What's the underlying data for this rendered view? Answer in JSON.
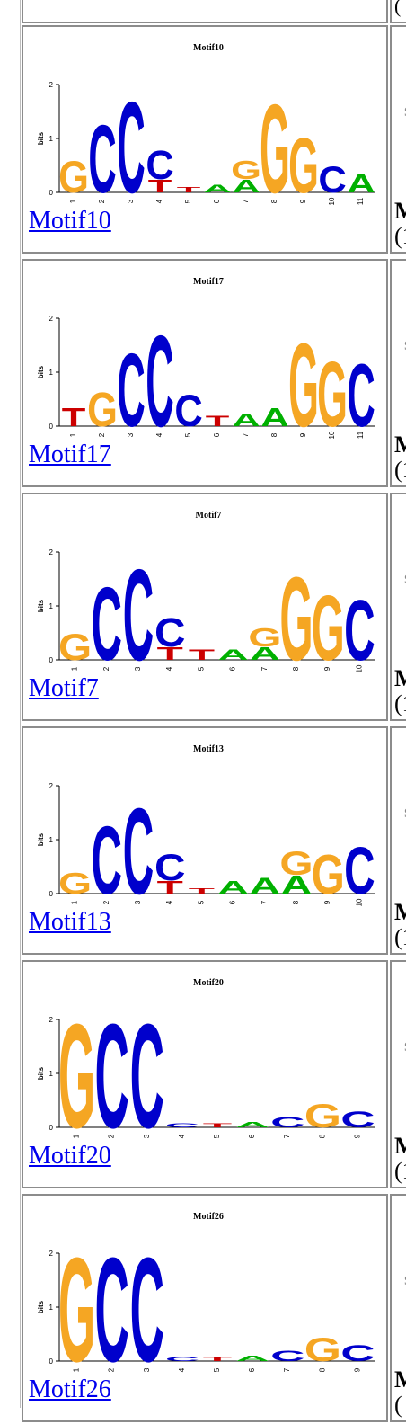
{
  "page": {
    "background": "#ffffff"
  },
  "top_partial": {
    "side_text": "("
  },
  "motifs": [
    {
      "title": "Motif10",
      "link": "Motif10",
      "side_s": "s",
      "side_m": "M",
      "side_p": "(1"
    },
    {
      "title": "Motif17",
      "link": "Motif17",
      "side_s": "s",
      "side_m": "M",
      "side_p": "(1"
    },
    {
      "title": "Motif7",
      "link": "Motif7",
      "side_s": "s",
      "side_m": "M",
      "side_p": "(1"
    },
    {
      "title": "Motif13",
      "link": "Motif13",
      "side_s": "s",
      "side_m": "M",
      "side_p": "(1"
    },
    {
      "title": "Motif20",
      "link": "Motif20",
      "side_s": "s",
      "side_m": "M",
      "side_p": "(1"
    },
    {
      "title": "Motif26",
      "link": "Motif26",
      "side_s": "s",
      "side_m": "M",
      "side_p": "("
    }
  ],
  "axis": {
    "ylabel": "bits",
    "yticks": [
      "0",
      "1",
      "2"
    ]
  },
  "colors": {
    "A": "#00b000",
    "C": "#0000cc",
    "G": "#f5a623",
    "T": "#cc0000"
  },
  "logos": [
    {
      "positions": [
        "1",
        "2",
        "3",
        "4",
        "5",
        "6",
        "7",
        "8",
        "9",
        "10",
        "11"
      ],
      "letters": [
        [
          "G"
        ],
        [
          "C"
        ],
        [
          "C"
        ],
        [
          "C",
          "T"
        ],
        [
          "T"
        ],
        [
          "A"
        ],
        [
          "G",
          "A"
        ],
        [
          "G"
        ],
        [
          "G"
        ],
        [
          "C"
        ],
        [
          "A"
        ]
      ],
      "heights": [
        [
          0.6
        ],
        [
          1.3
        ],
        [
          1.75
        ],
        [
          0.55,
          0.25
        ],
        [
          0.1
        ],
        [
          0.15
        ],
        [
          0.35,
          0.25
        ],
        [
          1.7
        ],
        [
          1.05
        ],
        [
          0.5
        ],
        [
          0.35
        ]
      ]
    },
    {
      "positions": [
        "1",
        "2",
        "3",
        "4",
        "5",
        "6",
        "7",
        "8",
        "9",
        "10",
        "11"
      ],
      "letters": [
        [
          "T"
        ],
        [
          "G"
        ],
        [
          "C"
        ],
        [
          "C"
        ],
        [
          "C"
        ],
        [
          "T"
        ],
        [
          "A"
        ],
        [
          "A"
        ],
        [
          "G"
        ],
        [
          "G"
        ],
        [
          "C"
        ]
      ],
      "heights": [
        [
          0.35
        ],
        [
          0.65
        ],
        [
          1.4
        ],
        [
          1.75
        ],
        [
          0.6
        ],
        [
          0.2
        ],
        [
          0.25
        ],
        [
          0.35
        ],
        [
          1.6
        ],
        [
          1.25
        ],
        [
          1.2
        ]
      ]
    },
    {
      "positions": [
        "1",
        "2",
        "3",
        "4",
        "5",
        "6",
        "7",
        "8",
        "9",
        "10"
      ],
      "letters": [
        [
          "G"
        ],
        [
          "C"
        ],
        [
          "C"
        ],
        [
          "C",
          "T"
        ],
        [
          "T"
        ],
        [
          "A"
        ],
        [
          "G",
          "A"
        ],
        [
          "G"
        ],
        [
          "G"
        ],
        [
          "C"
        ]
      ],
      "heights": [
        [
          0.5
        ],
        [
          1.4
        ],
        [
          1.75
        ],
        [
          0.55,
          0.25
        ],
        [
          0.2
        ],
        [
          0.2
        ],
        [
          0.35,
          0.25
        ],
        [
          1.6
        ],
        [
          1.25
        ],
        [
          1.15
        ]
      ]
    },
    {
      "positions": [
        "1",
        "2",
        "3",
        "4",
        "5",
        "6",
        "7",
        "8",
        "9",
        "10"
      ],
      "letters": [
        [
          "G"
        ],
        [
          "C"
        ],
        [
          "C"
        ],
        [
          "C",
          "T"
        ],
        [
          "T"
        ],
        [
          "A"
        ],
        [
          "A"
        ],
        [
          "G",
          "A"
        ],
        [
          "G"
        ],
        [
          "C"
        ]
      ],
      "heights": [
        [
          0.4
        ],
        [
          1.3
        ],
        [
          1.65
        ],
        [
          0.5,
          0.25
        ],
        [
          0.1
        ],
        [
          0.25
        ],
        [
          0.3
        ],
        [
          0.45,
          0.35
        ],
        [
          0.75
        ],
        [
          0.9
        ]
      ]
    },
    {
      "positions": [
        "1",
        "2",
        "3",
        "4",
        "5",
        "6",
        "7",
        "8",
        "9"
      ],
      "letters": [
        [
          "G"
        ],
        [
          "C"
        ],
        [
          "C"
        ],
        [
          "C"
        ],
        [
          "T"
        ],
        [
          "A"
        ],
        [
          "C"
        ],
        [
          "G"
        ],
        [
          "C"
        ]
      ],
      "heights": [
        [
          2.0
        ],
        [
          2.0
        ],
        [
          2.0
        ],
        [
          0.08
        ],
        [
          0.08
        ],
        [
          0.1
        ],
        [
          0.2
        ],
        [
          0.45
        ],
        [
          0.3
        ]
      ]
    },
    {
      "positions": [
        "1",
        "2",
        "3",
        "4",
        "5",
        "6",
        "7",
        "8",
        "9"
      ],
      "letters": [
        [
          "G"
        ],
        [
          "C"
        ],
        [
          "C"
        ],
        [
          "C"
        ],
        [
          "T"
        ],
        [
          "A"
        ],
        [
          "C"
        ],
        [
          "G"
        ],
        [
          "C"
        ]
      ],
      "heights": [
        [
          2.0
        ],
        [
          2.0
        ],
        [
          2.0
        ],
        [
          0.08
        ],
        [
          0.08
        ],
        [
          0.1
        ],
        [
          0.2
        ],
        [
          0.45
        ],
        [
          0.3
        ]
      ]
    }
  ]
}
